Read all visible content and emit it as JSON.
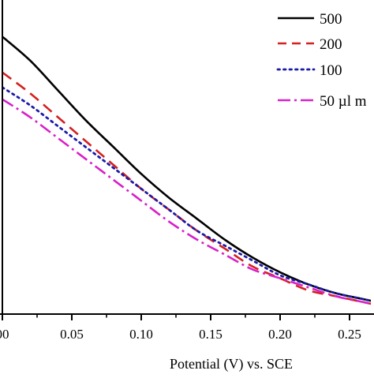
{
  "chart_data": {
    "type": "line",
    "title": "",
    "xlabel": "Potential (V) vs. SCE",
    "ylabel": "",
    "xlim": [
      0.0,
      0.27
    ],
    "ylim": [
      0.0,
      1.0
    ],
    "grid": false,
    "legend_position": "top-right",
    "x_ticks": [
      {
        "value": 0.0,
        "label": "00"
      },
      {
        "value": 0.05,
        "label": "0.05"
      },
      {
        "value": 0.1,
        "label": "0.10"
      },
      {
        "value": 0.15,
        "label": "0.15"
      },
      {
        "value": 0.2,
        "label": "0.20"
      },
      {
        "value": 0.25,
        "label": "0.25"
      }
    ],
    "series": [
      {
        "name": "500",
        "color": "#000000",
        "style": "solid",
        "x": [
          0.0,
          0.02,
          0.04,
          0.06,
          0.08,
          0.1,
          0.12,
          0.14,
          0.16,
          0.18,
          0.2,
          0.22,
          0.24,
          0.26,
          0.27
        ],
        "y": [
          0.93,
          0.85,
          0.75,
          0.65,
          0.56,
          0.47,
          0.39,
          0.32,
          0.25,
          0.19,
          0.14,
          0.1,
          0.07,
          0.05,
          0.04
        ]
      },
      {
        "name": "200",
        "color": "#d42020",
        "style": "dashed",
        "x": [
          0.0,
          0.02,
          0.04,
          0.06,
          0.08,
          0.1,
          0.12,
          0.14,
          0.16,
          0.18,
          0.2,
          0.22,
          0.24,
          0.26,
          0.27
        ],
        "y": [
          0.81,
          0.74,
          0.66,
          0.58,
          0.5,
          0.42,
          0.35,
          0.28,
          0.22,
          0.16,
          0.12,
          0.08,
          0.06,
          0.04,
          0.03
        ]
      },
      {
        "name": "100",
        "color": "#1a1aa8",
        "style": "dotted",
        "x": [
          0.0,
          0.02,
          0.04,
          0.06,
          0.08,
          0.1,
          0.12,
          0.14,
          0.16,
          0.18,
          0.2,
          0.22,
          0.24,
          0.26,
          0.27
        ],
        "y": [
          0.76,
          0.7,
          0.63,
          0.56,
          0.49,
          0.42,
          0.35,
          0.28,
          0.23,
          0.18,
          0.13,
          0.1,
          0.07,
          0.05,
          0.04
        ]
      },
      {
        "name": "50 µl m",
        "color": "#d820c8",
        "style": "dashdot",
        "x": [
          0.0,
          0.02,
          0.04,
          0.06,
          0.08,
          0.1,
          0.12,
          0.14,
          0.16,
          0.18,
          0.2,
          0.22,
          0.24,
          0.26,
          0.27
        ],
        "y": [
          0.72,
          0.66,
          0.59,
          0.52,
          0.45,
          0.38,
          0.31,
          0.25,
          0.2,
          0.15,
          0.12,
          0.09,
          0.06,
          0.04,
          0.03
        ]
      }
    ]
  }
}
